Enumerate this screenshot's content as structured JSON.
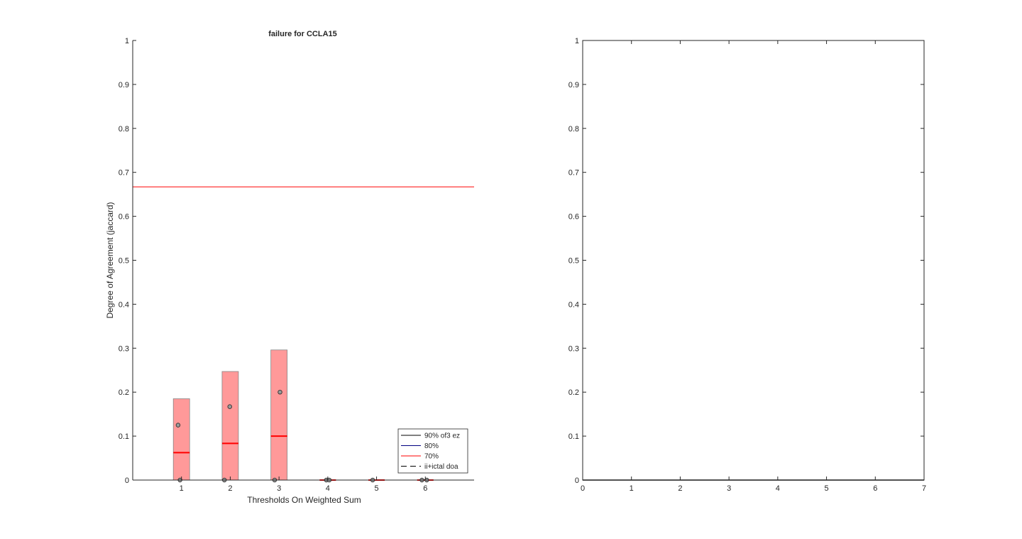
{
  "chart_data": [
    {
      "type": "box",
      "title": "failure for CCLA15",
      "xlabel": "Thresholds On Weighted Sum",
      "ylabel": "Degree of Agreement (jaccard)",
      "xlim": [
        0,
        7
      ],
      "ylim": [
        0,
        1
      ],
      "xticks": [
        1,
        2,
        3,
        4,
        5,
        6
      ],
      "yticks": [
        0,
        0.1,
        0.2,
        0.3,
        0.4,
        0.5,
        0.6,
        0.7,
        0.8,
        0.9,
        1
      ],
      "grid": false,
      "legend": {
        "placement": "bottom-right",
        "entries": [
          {
            "label": "90% of3 ez",
            "color": "#000000",
            "style": "solid"
          },
          {
            "label": "80%",
            "color": "#000080",
            "style": "solid"
          },
          {
            "label": "70%",
            "color": "#ff0000",
            "style": "solid"
          },
          {
            "label": "ii+ictal doa",
            "color": "#000000",
            "style": "dashed"
          }
        ]
      },
      "reference_lines": [
        {
          "label": "70%",
          "y": 0.667,
          "color": "#ff0000"
        },
        {
          "label": "ii+ictal doa",
          "y": 0,
          "color": "#000000",
          "style": "dashed"
        }
      ],
      "boxes": [
        {
          "x": 1,
          "low": 0,
          "high": 0.185,
          "median": 0.0625
        },
        {
          "x": 2,
          "low": 0,
          "high": 0.247,
          "median": 0.0833
        },
        {
          "x": 3,
          "low": 0,
          "high": 0.296,
          "median": 0.1
        },
        {
          "x": 4,
          "low": 0,
          "high": 0,
          "median": 0
        },
        {
          "x": 5,
          "low": 0,
          "high": 0,
          "median": 0
        },
        {
          "x": 6,
          "low": 0,
          "high": 0,
          "median": 0
        }
      ],
      "points": [
        {
          "x": 0.93,
          "y": 0.125
        },
        {
          "x": 0.97,
          "y": 0
        },
        {
          "x": 1.88,
          "y": 0
        },
        {
          "x": 1.99,
          "y": 0.167
        },
        {
          "x": 2.91,
          "y": 0
        },
        {
          "x": 3.02,
          "y": 0.2
        },
        {
          "x": 3.97,
          "y": 0
        },
        {
          "x": 4.03,
          "y": 0
        },
        {
          "x": 4.92,
          "y": 0
        },
        {
          "x": 5.93,
          "y": 0
        },
        {
          "x": 6.03,
          "y": 0
        }
      ],
      "colors": {
        "box_fill": "#ff9999",
        "box_edge": "#888888",
        "median": "#ff0000",
        "point_fill": "#999999",
        "point_edge": "#262626"
      }
    },
    {
      "type": "line",
      "title": "",
      "xlabel": "",
      "ylabel": "",
      "xlim": [
        0,
        7
      ],
      "ylim": [
        0,
        1
      ],
      "xticks": [
        0,
        1,
        2,
        3,
        4,
        5,
        6,
        7
      ],
      "yticks": [
        0,
        0.1,
        0.2,
        0.3,
        0.4,
        0.5,
        0.6,
        0.7,
        0.8,
        0.9,
        1
      ],
      "grid": false,
      "series": [
        {
          "x": [
            0,
            7
          ],
          "y": [
            0,
            0
          ],
          "color": "#000000"
        }
      ]
    }
  ]
}
